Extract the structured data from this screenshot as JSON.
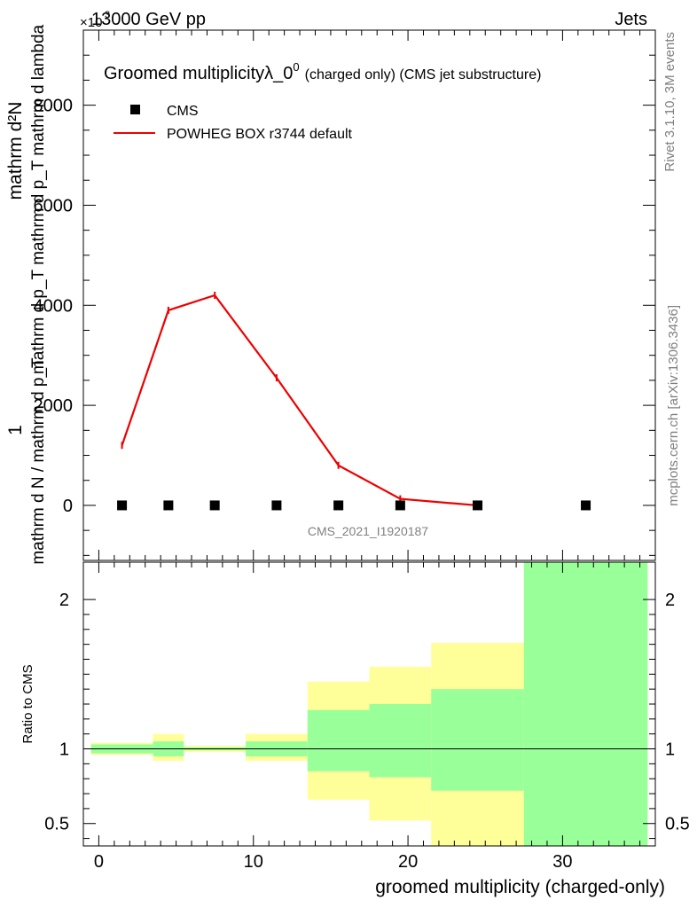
{
  "header": {
    "beam_label": "13000 GeV pp",
    "category": "Jets",
    "exponent_label": "×10",
    "exponent_power": "3"
  },
  "side_text": {
    "rivet": "Rivet 3.1.10,  3M events",
    "mcplots": "mcplots.cern.ch [arXiv:1306.3436]"
  },
  "watermark": "CMS_2021_I1920187",
  "colors": {
    "mc_line": "#ee0000",
    "band_inner": "#99ff99",
    "band_outer": "#ffff99"
  },
  "chart_data": [
    {
      "type": "line",
      "title": "Groomed multiplicity",
      "title_symbol": "λ_0",
      "title_symbol_sup": "0",
      "title_suffix": "(charged only) (CMS jet substructure)",
      "ylabel_top": "mathrm d²N",
      "ylabel_bottom": "mathrm d p_T mathrm d p_T mathrm d lambda",
      "ylabel_prefix_num": "1",
      "ylabel_prefix_den": "mathrm d N / mathrm d p_T",
      "xlim": [
        -1,
        36
      ],
      "ylim": [
        -1100,
        9500
      ],
      "y_ticks": [
        0,
        2000,
        4000,
        6000,
        8000
      ],
      "y_tick_labels": [
        "0",
        "2000",
        "4000",
        "6000",
        "8000"
      ],
      "legend": [
        {
          "name": "CMS",
          "marker": "square"
        },
        {
          "name": "POWHEG BOX r3744 default",
          "marker": "line"
        }
      ],
      "series": [
        {
          "name": "CMS",
          "x": [
            1.5,
            4.5,
            7.5,
            11.5,
            15.5,
            19.5,
            24.5,
            31.5
          ],
          "values": [
            0,
            0,
            0,
            0,
            0,
            0,
            0,
            0
          ]
        },
        {
          "name": "POWHEG BOX r3744 default",
          "x": [
            1.5,
            4.5,
            7.5,
            11.5,
            15.5,
            19.5,
            24.5
          ],
          "values": [
            1200,
            3900,
            4200,
            2550,
            800,
            130,
            0
          ]
        }
      ]
    },
    {
      "type": "area",
      "ylabel": "Ratio to CMS",
      "xlabel": "groomed multiplicity (charged-only)",
      "xlim": [
        -1,
        36
      ],
      "ylim": [
        0.35,
        2.25
      ],
      "x_ticks": [
        0,
        10,
        20,
        30
      ],
      "x_tick_labels": [
        "0",
        "10",
        "20",
        "30"
      ],
      "y_ticks": [
        0.5,
        1,
        2
      ],
      "y_tick_labels": [
        "0.5",
        "1",
        "2"
      ],
      "bins": [
        {
          "lo": -0.5,
          "hi": 3.5,
          "inner": [
            0.97,
            1.03
          ],
          "outer": [
            0.96,
            1.04
          ]
        },
        {
          "lo": 3.5,
          "hi": 5.5,
          "inner": [
            0.95,
            1.05
          ],
          "outer": [
            0.92,
            1.1
          ]
        },
        {
          "lo": 5.5,
          "hi": 9.5,
          "inner": [
            0.99,
            1.01
          ],
          "outer": [
            0.98,
            1.02
          ]
        },
        {
          "lo": 9.5,
          "hi": 13.5,
          "inner": [
            0.95,
            1.05
          ],
          "outer": [
            0.92,
            1.1
          ]
        },
        {
          "lo": 13.5,
          "hi": 17.5,
          "inner": [
            0.85,
            1.26
          ],
          "outer": [
            0.66,
            1.45
          ]
        },
        {
          "lo": 17.5,
          "hi": 21.5,
          "inner": [
            0.81,
            1.3
          ],
          "outer": [
            0.52,
            1.55
          ]
        },
        {
          "lo": 21.5,
          "hi": 27.5,
          "inner": [
            0.72,
            1.4
          ],
          "outer": [
            0.35,
            1.71
          ]
        },
        {
          "lo": 27.5,
          "hi": 35.5,
          "inner": [
            0.35,
            2.25
          ],
          "outer": [
            0.35,
            2.25
          ]
        }
      ]
    }
  ]
}
